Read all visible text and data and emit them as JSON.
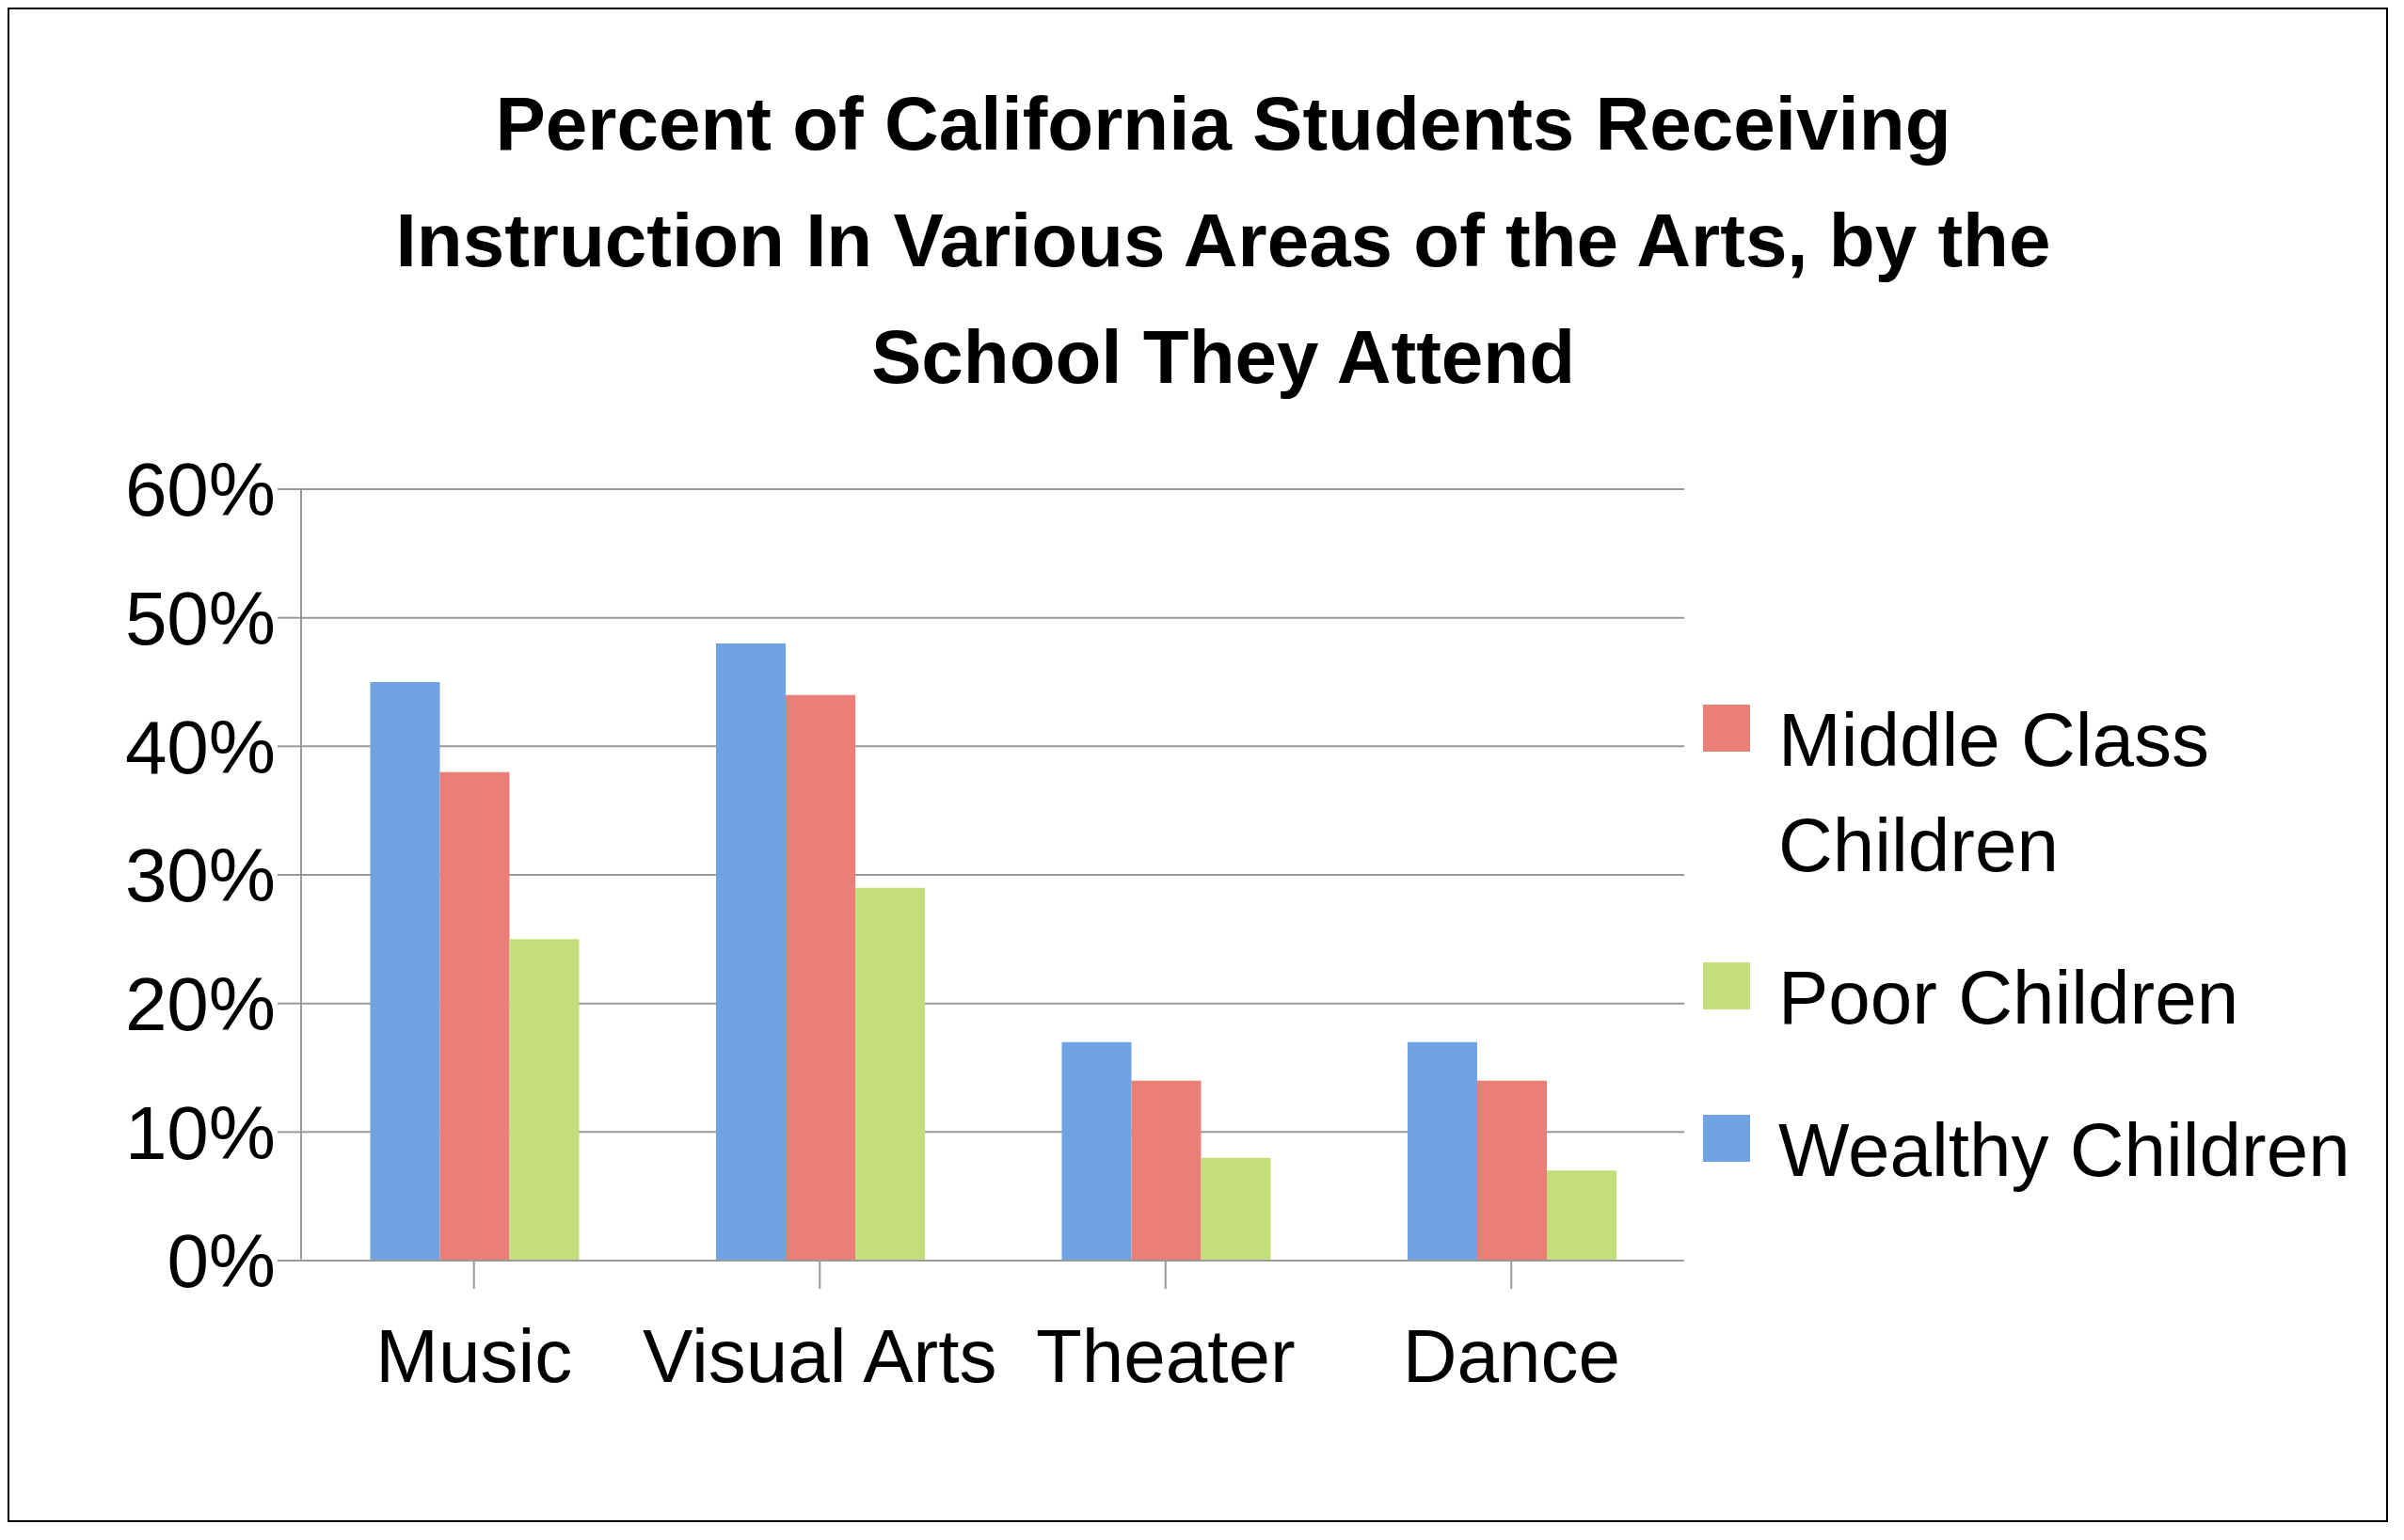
{
  "chart_data": {
    "type": "bar",
    "title": "Percent of California Students Receiving Instruction In Various Areas of the Arts, by the School They Attend",
    "categories": [
      "Music",
      "Visual Arts",
      "Theater",
      "Dance"
    ],
    "series": [
      {
        "name": "Wealthy Children",
        "color": "#6fa3e4",
        "values": [
          45,
          48,
          17,
          17
        ]
      },
      {
        "name": "Middle Class Children",
        "color": "#ea7f78",
        "values": [
          38,
          44,
          14,
          14
        ]
      },
      {
        "name": "Poor Children",
        "color": "#c3df7c",
        "values": [
          25,
          29,
          8,
          7
        ]
      }
    ],
    "ylim": [
      0,
      60
    ],
    "yticks": [
      {
        "value": 0,
        "label": "0%"
      },
      {
        "value": 10,
        "label": "10%"
      },
      {
        "value": 20,
        "label": "20%"
      },
      {
        "value": 30,
        "label": "30%"
      },
      {
        "value": 40,
        "label": "40%"
      },
      {
        "value": 50,
        "label": "50%"
      },
      {
        "value": 60,
        "label": "60%"
      }
    ],
    "grid": "y",
    "legend": "right"
  }
}
